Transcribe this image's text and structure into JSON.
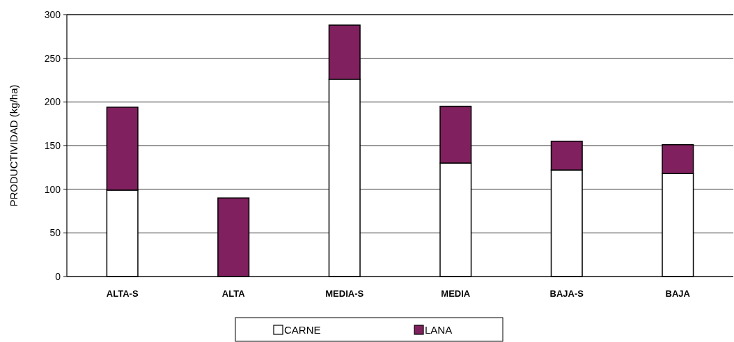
{
  "chart_data": {
    "type": "bar",
    "stacked": true,
    "ylabel": "PRODUCTIVIDAD (kg/ha)",
    "categories": [
      "ALTA-S",
      "ALTA",
      "MEDIA-S",
      "MEDIA",
      "BAJA-S",
      "BAJA"
    ],
    "series": [
      {
        "name": "CARNE",
        "color": "#ffffff",
        "values": [
          99,
          0,
          226,
          130,
          122,
          118
        ]
      },
      {
        "name": "LANA",
        "color": "#80205e",
        "values": [
          95,
          90,
          62,
          65,
          33,
          33
        ]
      }
    ],
    "ylim": [
      0,
      300
    ],
    "yticks": [
      0,
      50,
      100,
      150,
      200,
      250,
      300
    ],
    "grid": "y",
    "legend": "bottom"
  }
}
